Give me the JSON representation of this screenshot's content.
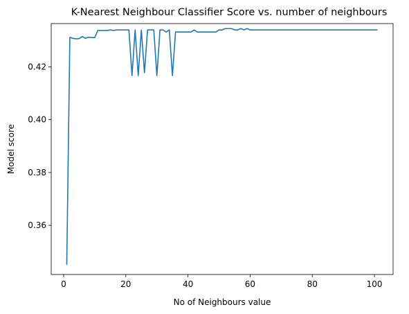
{
  "chart_data": {
    "type": "line",
    "title": "K-Nearest Neighbour Classifier Score vs. number of neighbours",
    "xlabel": "No of Neighbours value",
    "ylabel": "Model score",
    "xlim": [
      -4,
      106
    ],
    "ylim": [
      0.3414,
      0.4364
    ],
    "xticks": [
      0,
      20,
      40,
      60,
      80,
      100
    ],
    "xtick_labels": [
      "0",
      "20",
      "40",
      "60",
      "80",
      "100"
    ],
    "yticks": [
      0.36,
      0.38,
      0.4,
      0.42
    ],
    "ytick_labels": [
      "0.36",
      "0.38",
      "0.40",
      "0.42"
    ],
    "grid": false,
    "legend": "none",
    "color": "#1f77b4",
    "series": [
      {
        "x": [
          1,
          2,
          3,
          4,
          5,
          6,
          7,
          8,
          9,
          10,
          11,
          12,
          13,
          14,
          15,
          16,
          17,
          18,
          19,
          20,
          21,
          22,
          23,
          24,
          25,
          26,
          27,
          28,
          29,
          30,
          31,
          32,
          33,
          34,
          35,
          36,
          37,
          38,
          39,
          40,
          41,
          42,
          43,
          44,
          45,
          46,
          47,
          48,
          49,
          50,
          51,
          52,
          53,
          54,
          55,
          56,
          57,
          58,
          59,
          60,
          61,
          62,
          63,
          64,
          65,
          66,
          67,
          68,
          69,
          70,
          71,
          72,
          73,
          74,
          75,
          76,
          77,
          78,
          79,
          80,
          81,
          82,
          83,
          84,
          85,
          86,
          87,
          88,
          89,
          90,
          91,
          92,
          93,
          94,
          95,
          96,
          97,
          98,
          99,
          100,
          101
        ],
        "y": [
          0.345,
          0.4312,
          0.4308,
          0.4306,
          0.4307,
          0.4315,
          0.4308,
          0.4312,
          0.4311,
          0.4311,
          0.4338,
          0.4338,
          0.4338,
          0.4338,
          0.434,
          0.4338,
          0.434,
          0.434,
          0.434,
          0.434,
          0.434,
          0.4167,
          0.434,
          0.4167,
          0.434,
          0.4178,
          0.434,
          0.434,
          0.434,
          0.4167,
          0.434,
          0.434,
          0.4332,
          0.434,
          0.4167,
          0.4332,
          0.4332,
          0.4332,
          0.4332,
          0.4332,
          0.4332,
          0.434,
          0.4332,
          0.4332,
          0.4332,
          0.4332,
          0.4332,
          0.4332,
          0.4332,
          0.434,
          0.434,
          0.4345,
          0.4345,
          0.4345,
          0.434,
          0.434,
          0.4345,
          0.434,
          0.4345,
          0.434,
          0.434,
          0.434,
          0.434,
          0.434,
          0.434,
          0.434,
          0.434,
          0.434,
          0.434,
          0.434,
          0.434,
          0.434,
          0.434,
          0.434,
          0.434,
          0.434,
          0.434,
          0.434,
          0.434,
          0.434,
          0.434,
          0.434,
          0.434,
          0.434,
          0.434,
          0.434,
          0.434,
          0.434,
          0.434,
          0.434,
          0.434,
          0.434,
          0.434,
          0.434,
          0.434,
          0.434,
          0.434,
          0.434,
          0.434,
          0.434,
          0.434
        ]
      }
    ]
  }
}
